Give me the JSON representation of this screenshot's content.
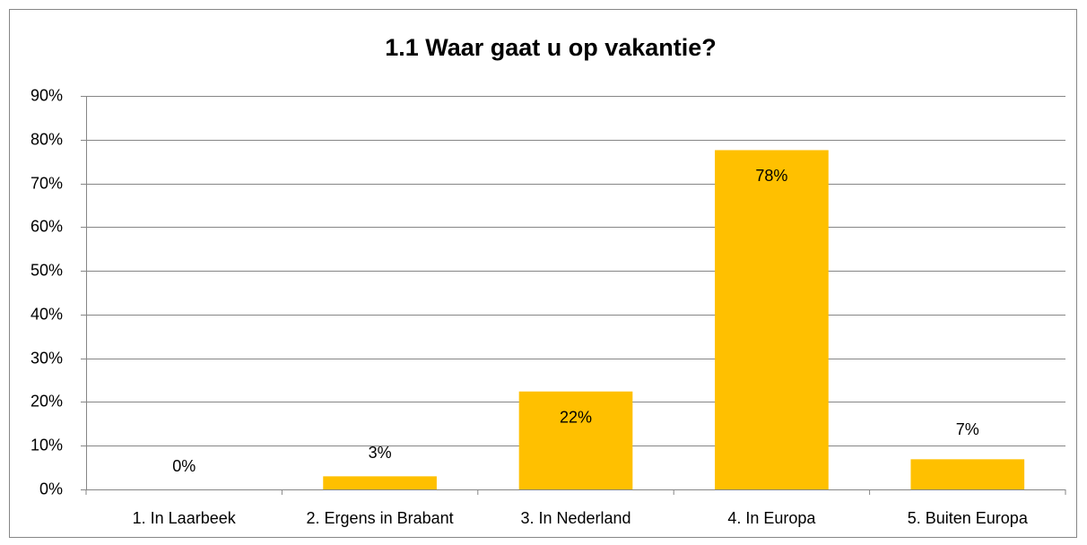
{
  "chart_data": {
    "type": "bar",
    "title": "1.1 Waar gaat u op vakantie?",
    "categories": [
      "1. In Laarbeek",
      "2. Ergens in Brabant",
      "3. In Nederland",
      "4. In Europa",
      "5. Buiten Europa"
    ],
    "values": [
      0,
      3,
      22.4,
      77.6,
      6.9
    ],
    "value_labels": [
      "0%",
      "3%",
      "22%",
      "78%",
      "7%"
    ],
    "color": "#ffc000",
    "ylim": [
      0,
      90
    ],
    "yticks": [
      {
        "value": 0,
        "label": "0%"
      },
      {
        "value": 10,
        "label": "10%"
      },
      {
        "value": 20,
        "label": "20%"
      },
      {
        "value": 30,
        "label": "30%"
      },
      {
        "value": 40,
        "label": "40%"
      },
      {
        "value": 50,
        "label": "50%"
      },
      {
        "value": 60,
        "label": "60%"
      },
      {
        "value": 70,
        "label": "70%"
      },
      {
        "value": 80,
        "label": "80%"
      },
      {
        "value": 90,
        "label": "90%"
      }
    ],
    "grid": true
  }
}
